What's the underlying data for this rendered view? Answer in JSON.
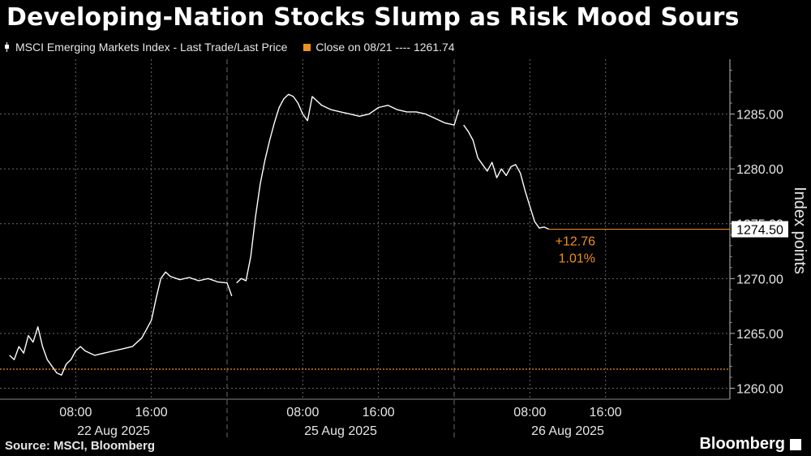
{
  "title": "Developing-Nation Stocks Slump as Risk Mood Sours",
  "legend": {
    "series_label": "MSCI Emerging Markets Index - Last Trade/Last Price",
    "close_label": "Close on 08/21 ---- 1261.74"
  },
  "footer": {
    "source": "Source: MSCI, Bloomberg",
    "brand": "Bloomberg"
  },
  "colors": {
    "line": "#ffffff",
    "close": "#f0901e",
    "grid": "#6a6a6a",
    "background": "#000000"
  },
  "chart_data": {
    "type": "line",
    "ylabel": "Index points",
    "ylim": [
      1259,
      1290
    ],
    "yticks": [
      "1260.00",
      "1265.00",
      "1270.00",
      "1275.00",
      "1280.00",
      "1285.00"
    ],
    "xticks": [
      "08:00",
      "16:00",
      "08:00",
      "16:00",
      "08:00",
      "16:00"
    ],
    "day_labels": [
      "22 Aug 2025",
      "25 Aug 2025",
      "26 Aug 2025"
    ],
    "close_value": 1261.74,
    "last_value": "1274.50",
    "change_abs": "+12.76",
    "change_pct": "1.01%",
    "days": [
      {
        "label": "22 Aug 2025",
        "points": [
          [
            1,
            1263.0
          ],
          [
            1.5,
            1262.6
          ],
          [
            2,
            1263.8
          ],
          [
            2.5,
            1263.2
          ],
          [
            3,
            1264.8
          ],
          [
            3.5,
            1264.2
          ],
          [
            4,
            1265.6
          ],
          [
            4.5,
            1263.8
          ],
          [
            5,
            1262.6
          ],
          [
            5.5,
            1262.0
          ],
          [
            6,
            1261.4
          ],
          [
            6.5,
            1261.2
          ],
          [
            7,
            1262.2
          ],
          [
            7.5,
            1262.6
          ],
          [
            8,
            1263.4
          ],
          [
            8.5,
            1263.8
          ],
          [
            9,
            1263.4
          ],
          [
            10,
            1263.0
          ],
          [
            11,
            1263.2
          ],
          [
            12,
            1263.4
          ],
          [
            13,
            1263.6
          ],
          [
            14,
            1263.8
          ],
          [
            15,
            1264.6
          ],
          [
            16,
            1266.2
          ],
          [
            16.5,
            1268.2
          ],
          [
            17,
            1270.0
          ],
          [
            17.5,
            1270.6
          ],
          [
            18,
            1270.2
          ],
          [
            19,
            1269.9
          ],
          [
            20,
            1270.1
          ],
          [
            21,
            1269.8
          ],
          [
            22,
            1270.0
          ],
          [
            23,
            1269.7
          ],
          [
            24,
            1269.6
          ],
          [
            24.5,
            1268.4
          ]
        ]
      },
      {
        "label": "25 Aug 2025",
        "points": [
          [
            1,
            1269.6
          ],
          [
            1.5,
            1270.0
          ],
          [
            2,
            1269.8
          ],
          [
            2.5,
            1272.0
          ],
          [
            3,
            1275.6
          ],
          [
            3.5,
            1278.6
          ],
          [
            4,
            1280.8
          ],
          [
            4.5,
            1282.6
          ],
          [
            5,
            1284.2
          ],
          [
            5.5,
            1285.6
          ],
          [
            6,
            1286.4
          ],
          [
            6.5,
            1286.8
          ],
          [
            7,
            1286.6
          ],
          [
            7.5,
            1286.0
          ],
          [
            8,
            1285.0
          ],
          [
            8.5,
            1284.4
          ],
          [
            9,
            1286.6
          ],
          [
            9.5,
            1286.2
          ],
          [
            10,
            1285.8
          ],
          [
            11,
            1285.4
          ],
          [
            12,
            1285.2
          ],
          [
            13,
            1285.0
          ],
          [
            14,
            1284.8
          ],
          [
            15,
            1285.0
          ],
          [
            16,
            1285.6
          ],
          [
            17,
            1285.8
          ],
          [
            18,
            1285.4
          ],
          [
            19,
            1285.2
          ],
          [
            20,
            1285.2
          ],
          [
            21,
            1285.0
          ],
          [
            22,
            1284.6
          ],
          [
            23,
            1284.2
          ],
          [
            24,
            1284.0
          ],
          [
            24.5,
            1285.4
          ]
        ]
      },
      {
        "label": "26 Aug 2025",
        "points": [
          [
            1,
            1284.0
          ],
          [
            1.5,
            1283.4
          ],
          [
            2,
            1282.6
          ],
          [
            2.5,
            1281.0
          ],
          [
            3,
            1280.4
          ],
          [
            3.5,
            1279.8
          ],
          [
            4,
            1280.6
          ],
          [
            4.5,
            1279.2
          ],
          [
            5,
            1280.0
          ],
          [
            5.5,
            1279.4
          ],
          [
            6,
            1280.2
          ],
          [
            6.5,
            1280.4
          ],
          [
            7,
            1279.6
          ],
          [
            7.5,
            1278.0
          ],
          [
            8,
            1276.6
          ],
          [
            8.5,
            1275.2
          ],
          [
            9,
            1274.6
          ],
          [
            9.5,
            1274.7
          ],
          [
            10,
            1274.5
          ]
        ]
      }
    ]
  }
}
